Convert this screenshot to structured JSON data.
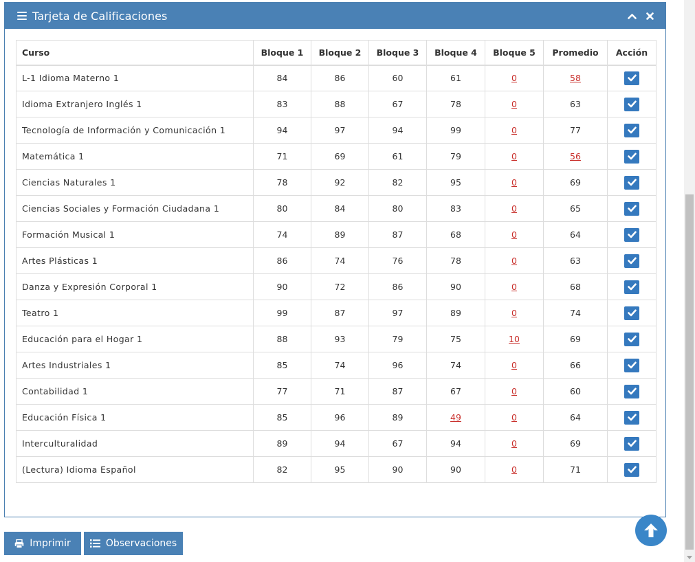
{
  "panel": {
    "title": "Tarjeta de Calificaciones"
  },
  "table": {
    "headers": [
      "Curso",
      "Bloque 1",
      "Bloque 2",
      "Bloque 3",
      "Bloque 4",
      "Bloque 5",
      "Promedio",
      "Acción"
    ],
    "rows": [
      {
        "course": "L-1 Idioma Materno 1",
        "b1": "84",
        "b2": "86",
        "b3": "60",
        "b4": "61",
        "b5": "0",
        "avg": "58"
      },
      {
        "course": "Idioma Extranjero Inglés 1",
        "b1": "83",
        "b2": "88",
        "b3": "67",
        "b4": "78",
        "b5": "0",
        "avg": "63"
      },
      {
        "course": "Tecnología de Información y Comunicación 1",
        "b1": "94",
        "b2": "97",
        "b3": "94",
        "b4": "99",
        "b5": "0",
        "avg": "77"
      },
      {
        "course": "Matemática 1",
        "b1": "71",
        "b2": "69",
        "b3": "61",
        "b4": "79",
        "b5": "0",
        "avg": "56"
      },
      {
        "course": "Ciencias Naturales 1",
        "b1": "78",
        "b2": "92",
        "b3": "82",
        "b4": "95",
        "b5": "0",
        "avg": "69"
      },
      {
        "course": "Ciencias Sociales y Formación Ciudadana 1",
        "b1": "80",
        "b2": "84",
        "b3": "80",
        "b4": "83",
        "b5": "0",
        "avg": "65"
      },
      {
        "course": "Formación Musical 1",
        "b1": "74",
        "b2": "89",
        "b3": "87",
        "b4": "68",
        "b5": "0",
        "avg": "64"
      },
      {
        "course": "Artes Plásticas 1",
        "b1": "86",
        "b2": "74",
        "b3": "76",
        "b4": "78",
        "b5": "0",
        "avg": "63"
      },
      {
        "course": "Danza y Expresión Corporal 1",
        "b1": "90",
        "b2": "72",
        "b3": "86",
        "b4": "90",
        "b5": "0",
        "avg": "68"
      },
      {
        "course": "Teatro 1",
        "b1": "99",
        "b2": "87",
        "b3": "97",
        "b4": "89",
        "b5": "0",
        "avg": "74"
      },
      {
        "course": "Educación para el Hogar 1",
        "b1": "88",
        "b2": "93",
        "b3": "79",
        "b4": "75",
        "b5": "10",
        "avg": "69"
      },
      {
        "course": "Artes Industriales 1",
        "b1": "85",
        "b2": "74",
        "b3": "96",
        "b4": "74",
        "b5": "0",
        "avg": "66"
      },
      {
        "course": "Contabilidad 1",
        "b1": "77",
        "b2": "71",
        "b3": "87",
        "b4": "67",
        "b5": "0",
        "avg": "60"
      },
      {
        "course": "Educación Física 1",
        "b1": "85",
        "b2": "96",
        "b3": "89",
        "b4": "49",
        "b5": "0",
        "avg": "64"
      },
      {
        "course": "Interculturalidad",
        "b1": "89",
        "b2": "94",
        "b3": "67",
        "b4": "94",
        "b5": "0",
        "avg": "69"
      },
      {
        "course": "(Lectura) Idioma Español",
        "b1": "82",
        "b2": "95",
        "b3": "90",
        "b4": "90",
        "b5": "0",
        "avg": "71"
      }
    ]
  },
  "buttons": {
    "print_label": "Imprimir",
    "observations_label": "Observaciones"
  },
  "colors": {
    "primary": "#4a81b5",
    "failing": "#c9302c",
    "check": "#3579be"
  }
}
